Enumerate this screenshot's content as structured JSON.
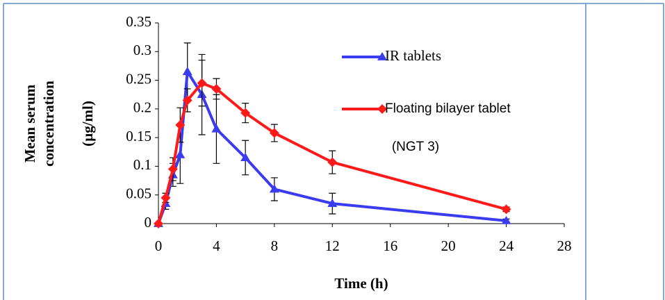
{
  "chart_data": {
    "type": "line",
    "ylabel": [
      "Mean serum",
      "concentration",
      "(µg/ml)"
    ],
    "xlabel": "Time  (h)",
    "x": [
      0,
      0.5,
      1,
      1.5,
      2,
      3,
      4,
      6,
      8,
      12,
      24
    ],
    "xlim": [
      0,
      28
    ],
    "xticks": [
      0,
      4,
      8,
      12,
      16,
      20,
      24,
      28
    ],
    "ylim": [
      0,
      0.35
    ],
    "yticks": [
      0,
      0.05,
      0.1,
      0.15,
      0.2,
      0.25,
      0.3,
      0.35
    ],
    "series": [
      {
        "name": "IR tablets",
        "color": "#3b3bf0",
        "marker": "triangle",
        "values": [
          0,
          0.035,
          0.085,
          0.12,
          0.265,
          0.225,
          0.165,
          0.115,
          0.06,
          0.035,
          0.005
        ],
        "errors": [
          0,
          0.01,
          0.02,
          0.05,
          0.05,
          0.07,
          0.06,
          0.03,
          0.02,
          0.018,
          0.003
        ]
      },
      {
        "name": "Floating bilayer tablet",
        "color": "#ff1a1a",
        "marker": "diamond",
        "values": [
          0,
          0.045,
          0.095,
          0.172,
          0.215,
          0.245,
          0.235,
          0.193,
          0.158,
          0.107,
          0.025
        ],
        "errors": [
          0,
          0.008,
          0.02,
          0.03,
          0.02,
          0.04,
          0.018,
          0.017,
          0.015,
          0.02,
          0.004
        ]
      }
    ],
    "annotation": "(NGT 3)"
  }
}
